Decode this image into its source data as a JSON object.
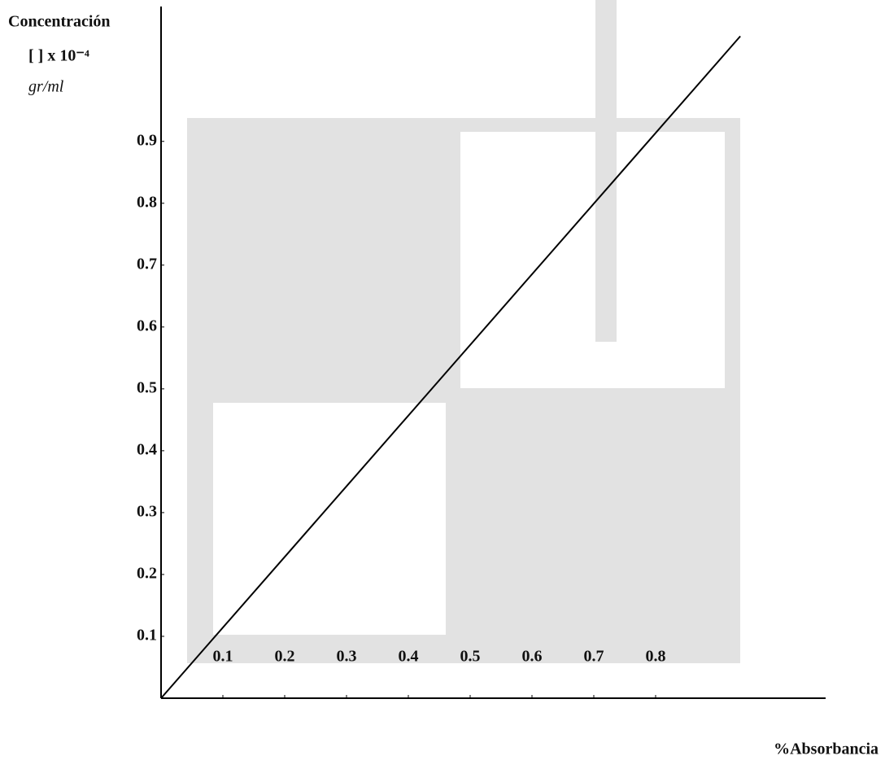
{
  "chart_data": {
    "type": "line",
    "ylabel": [
      "Concentración",
      "[ ] x 10⁻⁴",
      "gr/ml"
    ],
    "xlabel": "%Absorbancia",
    "x": [
      0,
      0.937
    ],
    "series": [
      {
        "color": "#000000",
        "values": [
          0,
          1.07
        ]
      }
    ],
    "xlim": [
      0,
      1.075
    ],
    "ylim": [
      0,
      1.118
    ],
    "xticks": [
      0.1,
      0.2,
      0.3,
      0.4,
      0.5,
      0.6,
      0.7,
      0.8
    ],
    "yticks": [
      0.1,
      0.2,
      0.3,
      0.4,
      0.5,
      0.6,
      0.7,
      0.8,
      0.9
    ],
    "grid": false
  }
}
